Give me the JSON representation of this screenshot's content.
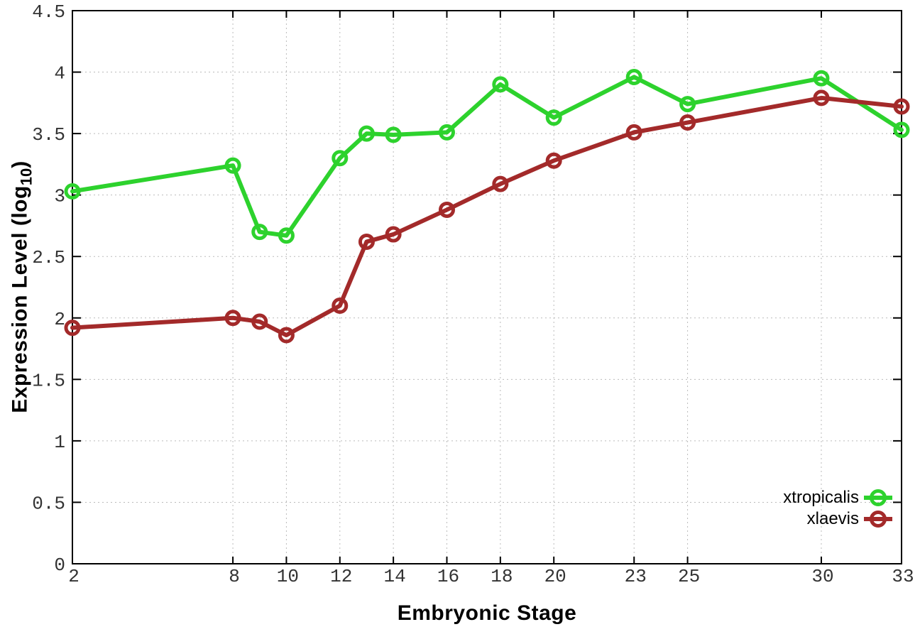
{
  "chart_data": {
    "type": "line",
    "title": "",
    "xlabel": "Embryonic Stage",
    "ylabel": "Expression Level (log10)",
    "ylabel_parts": {
      "pre": "Expression Level (log",
      "sub": "10",
      "post": ")"
    },
    "x": [
      2,
      8,
      9,
      10,
      12,
      13,
      14,
      16,
      18,
      20,
      23,
      25,
      30,
      33
    ],
    "xtick_values": [
      2,
      8,
      10,
      12,
      14,
      16,
      18,
      20,
      23,
      25,
      30,
      33
    ],
    "ytick_values": [
      0,
      0.5,
      1,
      1.5,
      2,
      2.5,
      3,
      3.5,
      4,
      4.5
    ],
    "xlim": [
      2,
      33
    ],
    "ylim": [
      0,
      4.5
    ],
    "grid": "dotted",
    "legend_position": "inside-bottom-right",
    "series": [
      {
        "name": "xtropicalis",
        "color": "#2dd22d",
        "values": [
          3.03,
          3.24,
          2.7,
          2.67,
          3.3,
          3.5,
          3.49,
          3.51,
          3.9,
          3.63,
          3.96,
          3.74,
          3.95,
          3.53
        ]
      },
      {
        "name": "xlaevis",
        "color": "#a32a2a",
        "values": [
          1.92,
          2.0,
          1.97,
          1.86,
          2.1,
          2.62,
          2.68,
          2.88,
          3.09,
          3.28,
          3.51,
          3.59,
          3.79,
          3.72
        ]
      }
    ],
    "colors": {
      "grid": "#bbbbbb",
      "border": "#000000",
      "tick_label": "#333333"
    }
  }
}
